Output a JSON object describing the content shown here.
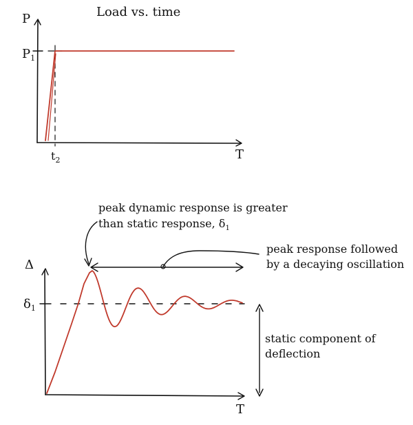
{
  "top_chart": {
    "title": "Load vs. time",
    "y_axis_label": "P",
    "x_axis_label": "T",
    "load_label": "P",
    "load_label_sub": "1",
    "time_label": "t",
    "time_label_sub": "2"
  },
  "bottom_chart": {
    "y_axis_label": "Δ",
    "x_axis_label": "T",
    "static_label": "δ",
    "static_label_sub": "1",
    "annotation_peak_line1": "peak dynamic response is greater",
    "annotation_peak_line2": "than static response, δ",
    "annotation_peak_sub": "1",
    "annotation_decay_line1": "peak response followed",
    "annotation_decay_line2": "by a decaying oscillation",
    "annotation_static_line1": "static component of",
    "annotation_static_line2": "deflection"
  },
  "colors": {
    "ink": "#111111",
    "response": "#c0392b"
  }
}
